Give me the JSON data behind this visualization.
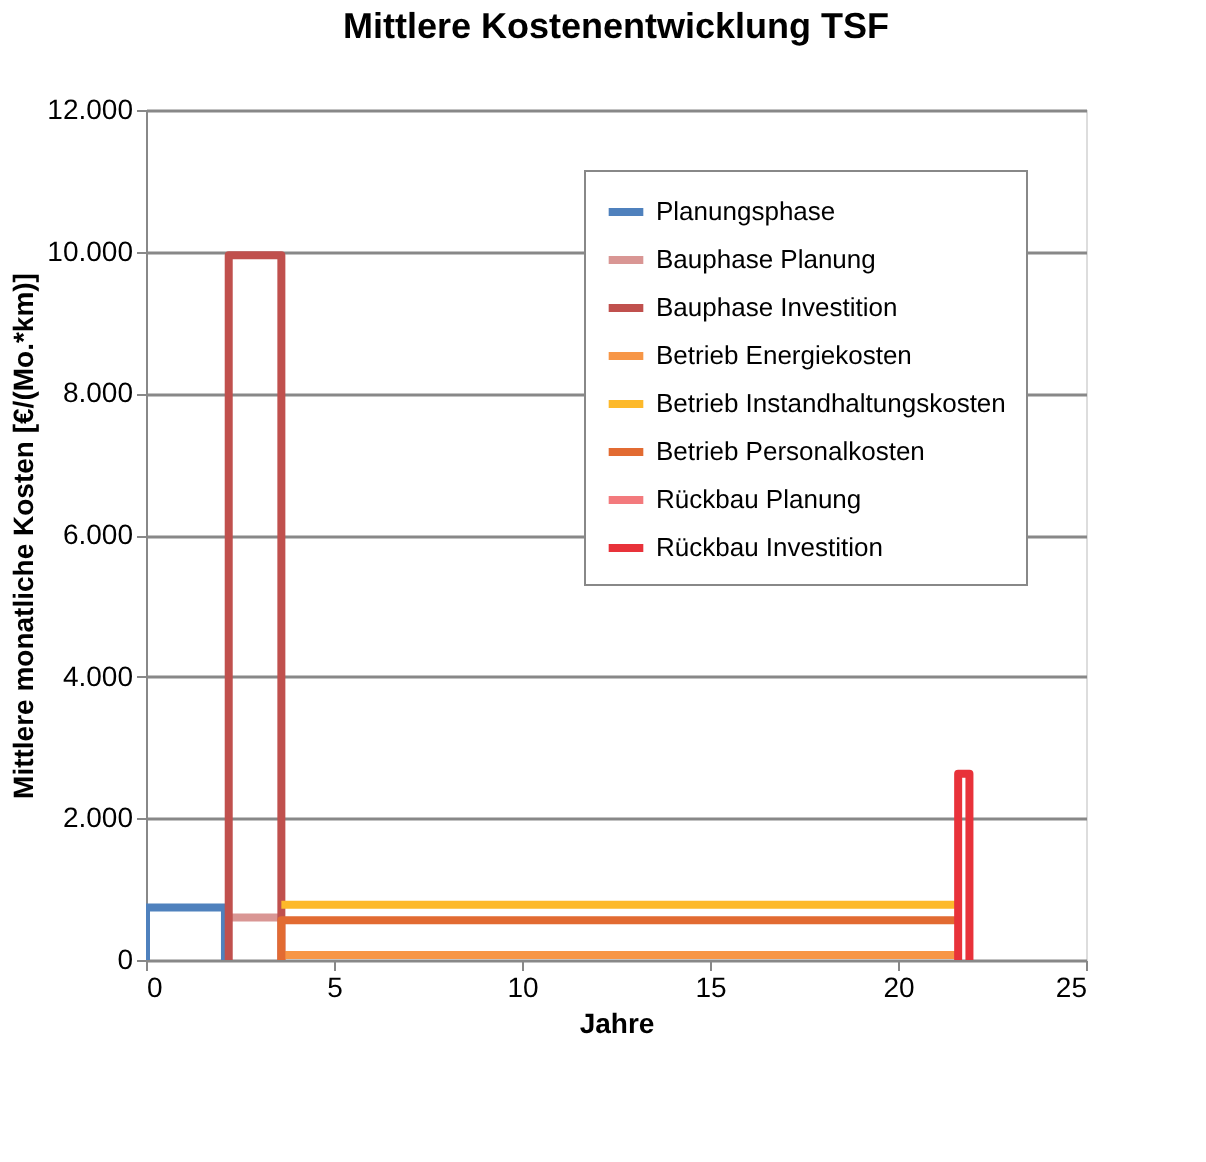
{
  "chart_data": {
    "type": "line",
    "title": "Mittlere Kostenentwicklung TSF",
    "xlabel": "Jahre",
    "ylabel": "Mittlere monatliche Kosten [€/(Mo.*km)]",
    "xlim": [
      0,
      25
    ],
    "xticks": [
      0,
      5,
      10,
      15,
      20,
      25
    ],
    "ylim": [
      0,
      12000
    ],
    "yticks": [
      {
        "value": 0,
        "label": "0"
      },
      {
        "value": 2000,
        "label": "2.000"
      },
      {
        "value": 4000,
        "label": "4.000"
      },
      {
        "value": 6000,
        "label": "6.000"
      },
      {
        "value": 8000,
        "label": "8.000"
      },
      {
        "value": 10000,
        "label": "10.000"
      },
      {
        "value": 12000,
        "label": "12.000"
      }
    ],
    "grid": "y",
    "legend": "top right",
    "marker": "none",
    "line_style": "solid",
    "series": [
      {
        "name": "Planungsphase",
        "color": "#4f81bd",
        "x": [
          0,
          0,
          2.1,
          2.1
        ],
        "values": [
          0,
          740,
          740,
          0
        ]
      },
      {
        "name": "Bauphase Planung",
        "color": "#d99694",
        "x": [
          2.2,
          3.6
        ],
        "values": [
          600,
          600
        ]
      },
      {
        "name": "Bauphase Investition",
        "color": "#c0504d",
        "x": [
          2.2,
          2.2,
          3.6,
          3.6
        ],
        "values": [
          0,
          9950,
          9950,
          0
        ]
      },
      {
        "name": "Betrieb Energiekosten",
        "color": "#f79646",
        "x": [
          3.6,
          21.7
        ],
        "values": [
          70,
          70
        ]
      },
      {
        "name": "Betrieb Instandhaltungskosten",
        "color": "#fdb92a",
        "x": [
          3.6,
          21.7
        ],
        "values": [
          780,
          780
        ]
      },
      {
        "name": "Betrieb Personalkosten",
        "color": "#e26b32",
        "x": [
          3.6,
          3.6,
          21.7
        ],
        "values": [
          0,
          560,
          560
        ]
      },
      {
        "name": "Rückbau Planung",
        "color": "#f37a7d"
      },
      {
        "name": "Rückbau Investition",
        "color": "#e8323a",
        "x": [
          21.6,
          21.6,
          21.9,
          21.9
        ],
        "values": [
          0,
          2630,
          2630,
          0
        ]
      }
    ]
  }
}
